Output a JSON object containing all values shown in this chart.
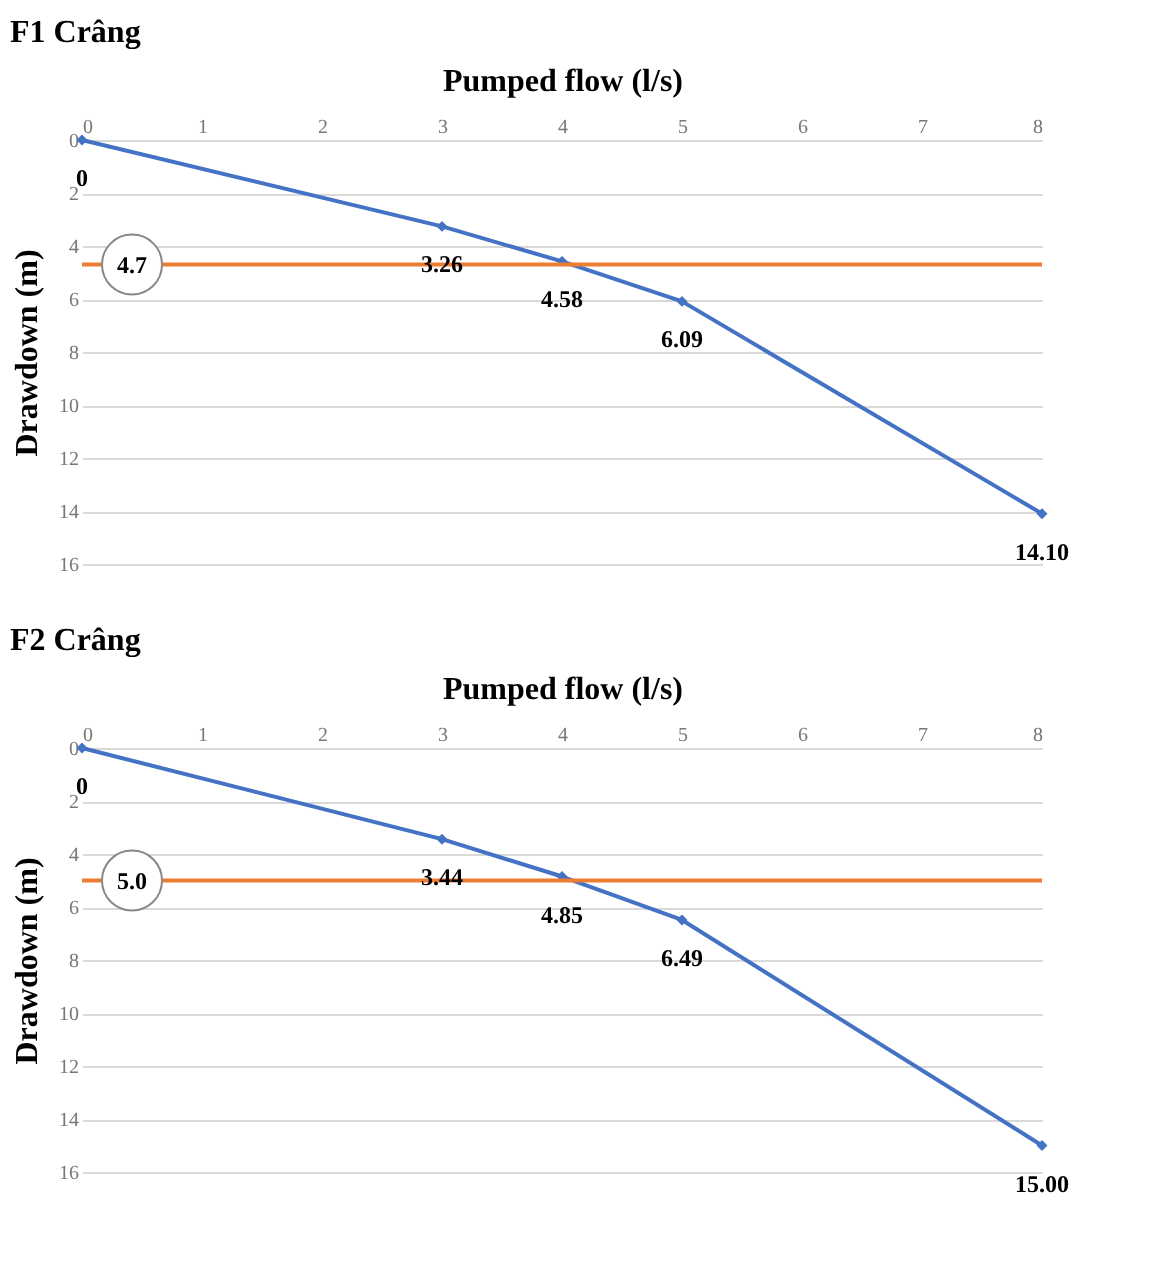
{
  "chart_data": [
    {
      "type": "line",
      "title": "F1 Crâng",
      "xlabel": "Pumped flow (l/s)",
      "ylabel": "Drawdown (m)",
      "x": [
        0,
        3,
        4,
        5,
        8
      ],
      "series": [
        {
          "color": "#4472c4",
          "values": [
            0,
            3.26,
            4.58,
            6.09,
            14.1
          ],
          "value_labels": [
            "0",
            "3.26",
            "4.58",
            "6.09",
            "14.10"
          ]
        }
      ],
      "xlim": [
        0,
        8
      ],
      "xticks": [
        0,
        1,
        2,
        3,
        4,
        5,
        6,
        7,
        8
      ],
      "ylim": [
        16,
        0
      ],
      "yticks": [
        0,
        2,
        4,
        6,
        8,
        10,
        12,
        14,
        16
      ],
      "ref_lines": [
        {
          "axis": "y",
          "value": 4.7,
          "label": "4.7",
          "color": "#ed7d31"
        }
      ],
      "grid": "y",
      "marker": "diamond"
    },
    {
      "type": "line",
      "title": "F2 Crâng",
      "xlabel": "Pumped flow (l/s)",
      "ylabel": "Drawdown  (m)",
      "x": [
        0,
        3,
        4,
        5,
        8
      ],
      "series": [
        {
          "color": "#4472c4",
          "values": [
            0,
            3.44,
            4.85,
            6.49,
            15.0
          ],
          "value_labels": [
            "0",
            "3.44",
            "4.85",
            "6.49",
            "15.00"
          ]
        }
      ],
      "xlim": [
        0,
        8
      ],
      "xticks": [
        0,
        1,
        2,
        3,
        4,
        5,
        6,
        7,
        8
      ],
      "ylim": [
        16,
        0
      ],
      "yticks": [
        0,
        2,
        4,
        6,
        8,
        10,
        12,
        14,
        16
      ],
      "ref_lines": [
        {
          "axis": "y",
          "value": 5.0,
          "label": "5.0",
          "color": "#ed7d31"
        }
      ],
      "grid": "y",
      "marker": "diamond"
    }
  ]
}
